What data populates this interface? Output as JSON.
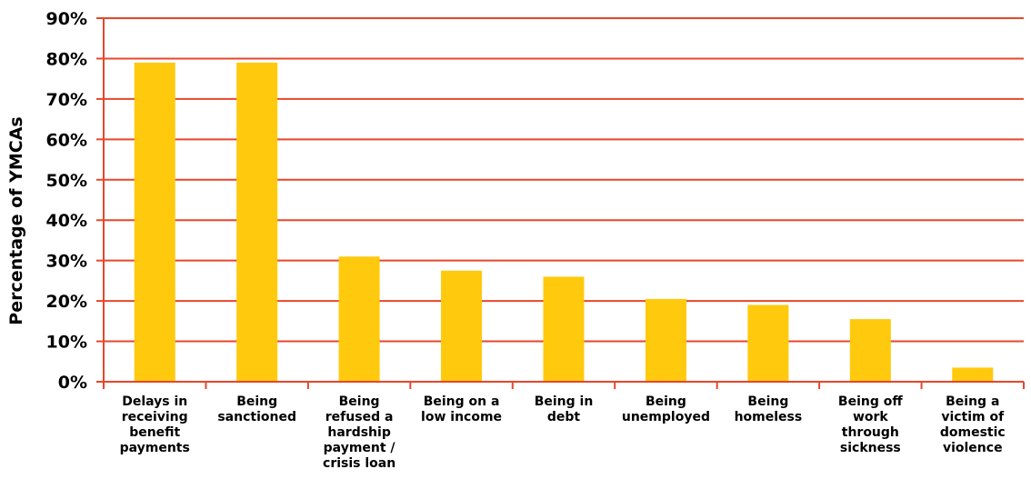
{
  "chart_data": {
    "type": "bar",
    "title": "",
    "xlabel": "",
    "ylabel": "Percentage of YMCAs",
    "ylim": [
      0,
      90
    ],
    "yticks": [
      "0%",
      "10%",
      "20%",
      "30%",
      "40%",
      "50%",
      "60%",
      "70%",
      "80%",
      "90%"
    ],
    "grid": true,
    "colors": {
      "bar": "#FFC90E",
      "grid": "#E8462A",
      "axis": "#E8462A"
    },
    "categories": [
      [
        "Delays in",
        "receiving",
        "benefit",
        "payments"
      ],
      [
        "Being",
        "sanctioned"
      ],
      [
        "Being",
        "refused a",
        "hardship",
        "payment /",
        "crisis loan"
      ],
      [
        "Being on a",
        "low income"
      ],
      [
        "Being in",
        "debt"
      ],
      [
        "Being",
        "unemployed"
      ],
      [
        "Being",
        "homeless"
      ],
      [
        "Being off",
        "work",
        "through",
        "sickness"
      ],
      [
        "Being a",
        "victim of",
        "domestic",
        "violence"
      ]
    ],
    "values": [
      79,
      79,
      31,
      27.5,
      26,
      20.5,
      19,
      15.5,
      3.5
    ]
  }
}
